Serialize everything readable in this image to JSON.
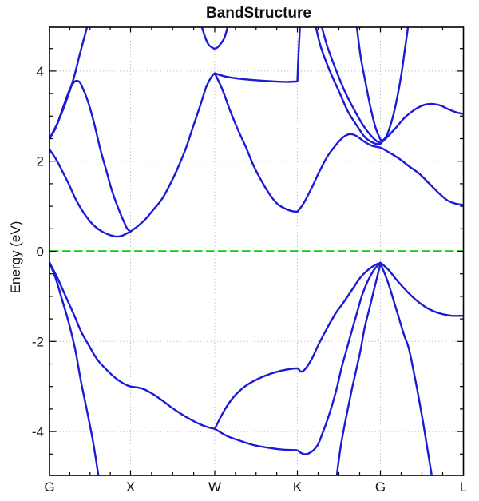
{
  "figure": {
    "title": "BandStructure",
    "ylabel": "Energy (eV)"
  },
  "chart_data": {
    "type": "line",
    "title": "BandStructure",
    "xlabel": "",
    "ylabel": "Energy (eV)",
    "ylim": [
      -5,
      5
    ],
    "grid": true,
    "legend": "none",
    "colors": {
      "band": "#1b1bd6",
      "fermi": "#00d400",
      "grid": "#b8b8b8",
      "axis": "#000000",
      "text": "#111111"
    },
    "y_ticks": [
      4,
      2,
      0,
      -2,
      -4
    ],
    "y_tick_labels": [
      "4",
      "2",
      "0",
      "-2",
      "-4"
    ],
    "y_minor_tick_step": 0.5,
    "x_minor_ticks_per_segment": 4,
    "k_points": [
      {
        "label": "G",
        "u": 0
      },
      {
        "label": "X",
        "u": 1
      },
      {
        "label": "W",
        "u": 2
      },
      {
        "label": "K",
        "u": 3
      },
      {
        "label": "G",
        "u": 4
      },
      {
        "label": "L",
        "u": 5
      }
    ],
    "fermi_level": {
      "E": 0.0,
      "style": "dashed",
      "color": "#00d400"
    },
    "bands": [
      {
        "name": "cb1_G-X",
        "points": [
          [
            0,
            2.26
          ],
          [
            0.079,
            2.05
          ],
          [
            0.158,
            1.78
          ],
          [
            0.236,
            1.5
          ],
          [
            0.325,
            1.15
          ],
          [
            0.424,
            0.85
          ],
          [
            0.522,
            0.62
          ],
          [
            0.621,
            0.47
          ],
          [
            0.719,
            0.38
          ],
          [
            0.818,
            0.33
          ],
          [
            0.887,
            0.34
          ],
          [
            0.946,
            0.39
          ],
          [
            1,
            0.44
          ]
        ]
      },
      {
        "name": "cb2_G-X",
        "points": [
          [
            0,
            2.5
          ],
          [
            0.08,
            2.75
          ],
          [
            0.16,
            3.15
          ],
          [
            0.24,
            3.55
          ],
          [
            0.3,
            3.75
          ],
          [
            0.35,
            3.78
          ],
          [
            0.39,
            3.7
          ],
          [
            0.47,
            3.35
          ],
          [
            0.55,
            2.85
          ],
          [
            0.63,
            2.25
          ],
          [
            0.7,
            1.8
          ],
          [
            0.77,
            1.35
          ],
          [
            0.85,
            0.95
          ],
          [
            0.92,
            0.65
          ],
          [
            0.96,
            0.5
          ],
          [
            1,
            0.44
          ]
        ]
      },
      {
        "name": "cb3_G-X",
        "points": [
          [
            0,
            2.5
          ],
          [
            0.1,
            2.85
          ],
          [
            0.2,
            3.3
          ],
          [
            0.3,
            3.85
          ],
          [
            0.37,
            4.35
          ],
          [
            0.43,
            4.75
          ],
          [
            0.48,
            5.08
          ]
        ]
      },
      {
        "name": "cb_X-W",
        "points": [
          [
            1,
            0.44
          ],
          [
            1.08,
            0.55
          ],
          [
            1.18,
            0.72
          ],
          [
            1.27,
            0.92
          ],
          [
            1.37,
            1.15
          ],
          [
            1.46,
            1.45
          ],
          [
            1.55,
            1.8
          ],
          [
            1.65,
            2.25
          ],
          [
            1.74,
            2.75
          ],
          [
            1.83,
            3.25
          ],
          [
            1.9,
            3.65
          ],
          [
            1.96,
            3.87
          ],
          [
            2,
            3.95
          ]
        ]
      },
      {
        "name": "cb_W-K_upper",
        "points": [
          [
            2,
            3.95
          ],
          [
            2.15,
            3.87
          ],
          [
            2.35,
            3.82
          ],
          [
            2.54,
            3.79
          ],
          [
            2.73,
            3.77
          ],
          [
            2.88,
            3.76
          ],
          [
            3,
            3.77
          ]
        ]
      },
      {
        "name": "cb_K_vertical",
        "points": [
          [
            3,
            3.77
          ],
          [
            3.012,
            4.3
          ],
          [
            3.034,
            5.08
          ]
        ]
      },
      {
        "name": "cb_W-K_lower",
        "points": [
          [
            2,
            3.95
          ],
          [
            2.09,
            3.6
          ],
          [
            2.18,
            3.15
          ],
          [
            2.28,
            2.7
          ],
          [
            2.38,
            2.3
          ],
          [
            2.47,
            1.9
          ],
          [
            2.57,
            1.55
          ],
          [
            2.67,
            1.25
          ],
          [
            2.76,
            1.05
          ],
          [
            2.86,
            0.94
          ],
          [
            2.94,
            0.89
          ],
          [
            3,
            0.88
          ]
        ]
      },
      {
        "name": "cb_K-G-L_lowest",
        "points": [
          [
            3,
            0.88
          ],
          [
            3.07,
            1.05
          ],
          [
            3.17,
            1.4
          ],
          [
            3.26,
            1.75
          ],
          [
            3.36,
            2.1
          ],
          [
            3.46,
            2.35
          ],
          [
            3.55,
            2.53
          ],
          [
            3.63,
            2.6
          ],
          [
            3.71,
            2.56
          ],
          [
            3.8,
            2.44
          ],
          [
            3.9,
            2.34
          ],
          [
            4,
            2.3
          ],
          [
            4.1,
            2.2
          ],
          [
            4.23,
            2.05
          ],
          [
            4.35,
            1.88
          ],
          [
            4.47,
            1.72
          ],
          [
            4.59,
            1.5
          ],
          [
            4.71,
            1.28
          ],
          [
            4.8,
            1.14
          ],
          [
            4.9,
            1.06
          ],
          [
            5,
            1.03
          ]
        ]
      },
      {
        "name": "cb_K-G_pair1",
        "points": [
          [
            3.21,
            5.08
          ],
          [
            3.28,
            4.55
          ],
          [
            3.38,
            4.05
          ],
          [
            3.5,
            3.55
          ],
          [
            3.61,
            3.1
          ],
          [
            3.73,
            2.75
          ],
          [
            3.82,
            2.52
          ],
          [
            3.92,
            2.4
          ],
          [
            4,
            2.37
          ]
        ]
      },
      {
        "name": "cb_K-G_pair2",
        "points": [
          [
            3.28,
            5.08
          ],
          [
            3.36,
            4.55
          ],
          [
            3.46,
            4.05
          ],
          [
            3.57,
            3.55
          ],
          [
            3.69,
            3.12
          ],
          [
            3.79,
            2.8
          ],
          [
            3.88,
            2.58
          ],
          [
            3.96,
            2.44
          ],
          [
            4,
            2.41
          ]
        ]
      },
      {
        "name": "cb_G_parabola",
        "points": [
          [
            3.71,
            5.08
          ],
          [
            3.76,
            4.35
          ],
          [
            3.82,
            3.75
          ],
          [
            3.88,
            3.2
          ],
          [
            3.94,
            2.75
          ],
          [
            3.99,
            2.52
          ],
          [
            4.02,
            2.46
          ],
          [
            4.07,
            2.55
          ],
          [
            4.13,
            2.85
          ],
          [
            4.19,
            3.3
          ],
          [
            4.25,
            3.9
          ],
          [
            4.3,
            4.55
          ],
          [
            4.34,
            5.08
          ]
        ]
      },
      {
        "name": "cb_G-L_upper",
        "points": [
          [
            4,
            2.39
          ],
          [
            4.09,
            2.55
          ],
          [
            4.19,
            2.75
          ],
          [
            4.3,
            2.98
          ],
          [
            4.42,
            3.15
          ],
          [
            4.53,
            3.25
          ],
          [
            4.63,
            3.27
          ],
          [
            4.73,
            3.23
          ],
          [
            4.82,
            3.15
          ],
          [
            4.92,
            3.08
          ],
          [
            5,
            3.05
          ]
        ]
      },
      {
        "name": "cb_W_dip",
        "points": [
          [
            1.83,
            5.08
          ],
          [
            1.89,
            4.73
          ],
          [
            1.93,
            4.58
          ],
          [
            1.98,
            4.51
          ],
          [
            2,
            4.5
          ],
          [
            2.03,
            4.52
          ],
          [
            2.07,
            4.6
          ],
          [
            2.12,
            4.75
          ],
          [
            2.17,
            5.08
          ]
        ]
      },
      {
        "name": "vb_G-X_steep",
        "points": [
          [
            0,
            -0.25
          ],
          [
            0.08,
            -0.62
          ],
          [
            0.16,
            -1.1
          ],
          [
            0.24,
            -1.6
          ],
          [
            0.32,
            -2.2
          ],
          [
            0.39,
            -2.9
          ],
          [
            0.47,
            -3.6
          ],
          [
            0.54,
            -4.25
          ],
          [
            0.61,
            -5.05
          ]
        ]
      },
      {
        "name": "vb_G-X-W",
        "points": [
          [
            0,
            -0.25
          ],
          [
            0.1,
            -0.6
          ],
          [
            0.2,
            -1.0
          ],
          [
            0.3,
            -1.4
          ],
          [
            0.39,
            -1.78
          ],
          [
            0.49,
            -2.1
          ],
          [
            0.59,
            -2.4
          ],
          [
            0.7,
            -2.62
          ],
          [
            0.82,
            -2.82
          ],
          [
            0.92,
            -2.94
          ],
          [
            1,
            -3.0
          ],
          [
            1.08,
            -3.02
          ],
          [
            1.16,
            -3.06
          ],
          [
            1.25,
            -3.15
          ],
          [
            1.37,
            -3.3
          ],
          [
            1.49,
            -3.47
          ],
          [
            1.61,
            -3.62
          ],
          [
            1.73,
            -3.75
          ],
          [
            1.84,
            -3.85
          ],
          [
            1.93,
            -3.91
          ],
          [
            2,
            -3.94
          ]
        ]
      },
      {
        "name": "vb_W-K-G_upper",
        "points": [
          [
            2,
            -3.94
          ],
          [
            2.11,
            -3.55
          ],
          [
            2.22,
            -3.25
          ],
          [
            2.35,
            -3.02
          ],
          [
            2.47,
            -2.88
          ],
          [
            2.61,
            -2.76
          ],
          [
            2.74,
            -2.68
          ],
          [
            2.88,
            -2.62
          ],
          [
            3,
            -2.6
          ],
          [
            3.04,
            -2.67
          ],
          [
            3.09,
            -2.62
          ],
          [
            3.17,
            -2.4
          ],
          [
            3.26,
            -2.05
          ],
          [
            3.36,
            -1.7
          ],
          [
            3.46,
            -1.38
          ],
          [
            3.55,
            -1.15
          ],
          [
            3.66,
            -0.85
          ],
          [
            3.76,
            -0.58
          ],
          [
            3.86,
            -0.4
          ],
          [
            3.94,
            -0.3
          ],
          [
            4,
            -0.26
          ]
        ]
      },
      {
        "name": "vb_W-K-G_lower",
        "points": [
          [
            2,
            -3.94
          ],
          [
            2.15,
            -4.1
          ],
          [
            2.3,
            -4.2
          ],
          [
            2.47,
            -4.3
          ],
          [
            2.65,
            -4.36
          ],
          [
            2.82,
            -4.4
          ],
          [
            2.94,
            -4.41
          ],
          [
            3,
            -4.42
          ],
          [
            3.04,
            -4.47
          ],
          [
            3.08,
            -4.5
          ],
          [
            3.13,
            -4.49
          ],
          [
            3.19,
            -4.42
          ],
          [
            3.25,
            -4.28
          ],
          [
            3.3,
            -4.05
          ],
          [
            3.36,
            -3.75
          ],
          [
            3.42,
            -3.4
          ],
          [
            3.48,
            -3.0
          ],
          [
            3.53,
            -2.6
          ],
          [
            3.59,
            -2.2
          ],
          [
            3.65,
            -1.8
          ],
          [
            3.72,
            -1.35
          ],
          [
            3.78,
            -0.97
          ],
          [
            3.85,
            -0.65
          ],
          [
            3.92,
            -0.42
          ],
          [
            3.97,
            -0.31
          ],
          [
            4,
            -0.27
          ]
        ]
      },
      {
        "name": "vb_K-G_steep",
        "points": [
          [
            3.47,
            -5.05
          ],
          [
            3.52,
            -4.35
          ],
          [
            3.58,
            -3.75
          ],
          [
            3.64,
            -3.2
          ],
          [
            3.7,
            -2.7
          ],
          [
            3.76,
            -2.2
          ],
          [
            3.81,
            -1.7
          ],
          [
            3.87,
            -1.25
          ],
          [
            3.93,
            -0.8
          ],
          [
            3.97,
            -0.5
          ],
          [
            4,
            -0.28
          ]
        ]
      },
      {
        "name": "vb_G-L_steep",
        "points": [
          [
            4,
            -0.28
          ],
          [
            4.053,
            -0.5
          ],
          [
            4.111,
            -0.8
          ],
          [
            4.168,
            -1.15
          ],
          [
            4.226,
            -1.5
          ],
          [
            4.284,
            -1.85
          ],
          [
            4.341,
            -2.15
          ],
          [
            4.399,
            -2.65
          ],
          [
            4.457,
            -3.2
          ],
          [
            4.514,
            -3.8
          ],
          [
            4.572,
            -4.45
          ],
          [
            4.625,
            -5.05
          ]
        ]
      },
      {
        "name": "vb_G-L_heavy",
        "points": [
          [
            4,
            -0.25
          ],
          [
            4.091,
            -0.4
          ],
          [
            4.188,
            -0.62
          ],
          [
            4.284,
            -0.82
          ],
          [
            4.38,
            -1.0
          ],
          [
            4.476,
            -1.15
          ],
          [
            4.572,
            -1.27
          ],
          [
            4.668,
            -1.35
          ],
          [
            4.764,
            -1.4
          ],
          [
            4.861,
            -1.43
          ],
          [
            5,
            -1.43
          ]
        ]
      }
    ]
  }
}
